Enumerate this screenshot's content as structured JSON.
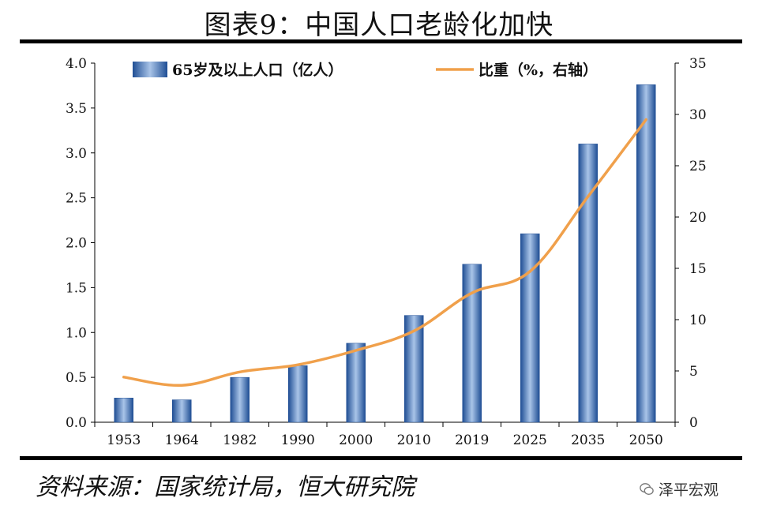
{
  "title": "图表9：中国人口老龄化加快",
  "source": "资料来源：国家统计局，恒大研究院",
  "brand": "泽平宏观",
  "chart_data": {
    "type": "bar+line",
    "categories": [
      "1953",
      "1964",
      "1982",
      "1990",
      "2000",
      "2010",
      "2019",
      "2025",
      "2035",
      "2050"
    ],
    "series": [
      {
        "name": "65岁及以上人口（亿人）",
        "type": "bar",
        "axis": "left",
        "values": [
          0.27,
          0.25,
          0.5,
          0.63,
          0.88,
          1.19,
          1.76,
          2.1,
          3.1,
          3.76
        ]
      },
      {
        "name": "比重（%，右轴）",
        "type": "line",
        "axis": "right",
        "values": [
          4.4,
          3.6,
          4.9,
          5.6,
          7.0,
          8.9,
          12.6,
          14.7,
          22.0,
          29.5
        ]
      }
    ],
    "y_left": {
      "min": 0,
      "max": 4.0,
      "ticks": [
        "0.0",
        "0.5",
        "1.0",
        "1.5",
        "2.0",
        "2.5",
        "3.0",
        "3.5",
        "4.0"
      ]
    },
    "y_right": {
      "min": 0,
      "max": 35,
      "ticks": [
        "0",
        "5",
        "10",
        "15",
        "20",
        "25",
        "30",
        "35"
      ]
    },
    "legend_position": "top",
    "colors": {
      "bar_dark": "#1f4e94",
      "bar_light": "#a9c4e8",
      "line": "#f0a04b",
      "axis": "#000000"
    }
  }
}
